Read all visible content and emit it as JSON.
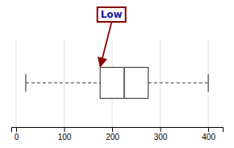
{
  "chart_data": {
    "type": "box",
    "whisker_low": 20,
    "q1": 175,
    "median": 225,
    "q3": 275,
    "whisker_high": 400,
    "xlim": [
      -10,
      430
    ],
    "xticks": [
      0,
      100,
      200,
      300,
      400
    ],
    "grid": true,
    "tick_labels": "x",
    "color": "#444444",
    "annotations": [
      {
        "text": "Low",
        "x": 175,
        "color": "#1a1aaa"
      }
    ]
  }
}
